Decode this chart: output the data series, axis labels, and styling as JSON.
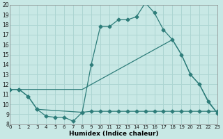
{
  "xlabel": "Humidex (Indice chaleur)",
  "bg_color": "#c8e8e5",
  "grid_color": "#add5d2",
  "line_color": "#2e7d7a",
  "ylim": [
    8,
    20
  ],
  "xlim": [
    0,
    23
  ],
  "yticks": [
    8,
    9,
    10,
    11,
    12,
    13,
    14,
    15,
    16,
    17,
    18,
    19,
    20
  ],
  "xticks": [
    0,
    1,
    2,
    3,
    4,
    5,
    6,
    7,
    8,
    9,
    10,
    11,
    12,
    13,
    14,
    15,
    16,
    17,
    18,
    19,
    20,
    21,
    22,
    23
  ],
  "series1_x": [
    0,
    1,
    2,
    3,
    4,
    5,
    6,
    7,
    8,
    9,
    10,
    11,
    12,
    13,
    14,
    15,
    16,
    17,
    18,
    19,
    20,
    21,
    22,
    23
  ],
  "series1_y": [
    11.5,
    11.5,
    10.8,
    9.5,
    8.8,
    8.7,
    8.7,
    8.3,
    9.2,
    9.3,
    9.3,
    9.3,
    9.3,
    9.3,
    9.3,
    9.3,
    9.3,
    9.3,
    9.3,
    9.3,
    9.3,
    9.3,
    9.3,
    9.3
  ],
  "series2_x": [
    0,
    1,
    2,
    3,
    4,
    5,
    6,
    7,
    8,
    9,
    10,
    11,
    12,
    13,
    14,
    15,
    16,
    17,
    18,
    19,
    20,
    21,
    22,
    23
  ],
  "series2_y": [
    11.5,
    11.5,
    11.5,
    11.5,
    11.5,
    11.5,
    11.5,
    11.5,
    11.5,
    12.0,
    12.5,
    13.0,
    13.5,
    14.0,
    14.5,
    15.0,
    15.5,
    16.0,
    16.5,
    15.0,
    13.0,
    12.0,
    10.2,
    9.1
  ],
  "series3_x": [
    0,
    1,
    2,
    3,
    8,
    9,
    10,
    11,
    12,
    13,
    14,
    15,
    16,
    17,
    18,
    19,
    20,
    21,
    22,
    23
  ],
  "series3_y": [
    11.5,
    11.5,
    10.8,
    9.5,
    9.2,
    14.0,
    17.8,
    17.8,
    18.5,
    18.5,
    18.8,
    20.2,
    19.2,
    17.5,
    16.5,
    15.0,
    13.0,
    12.0,
    10.3,
    9.1
  ]
}
